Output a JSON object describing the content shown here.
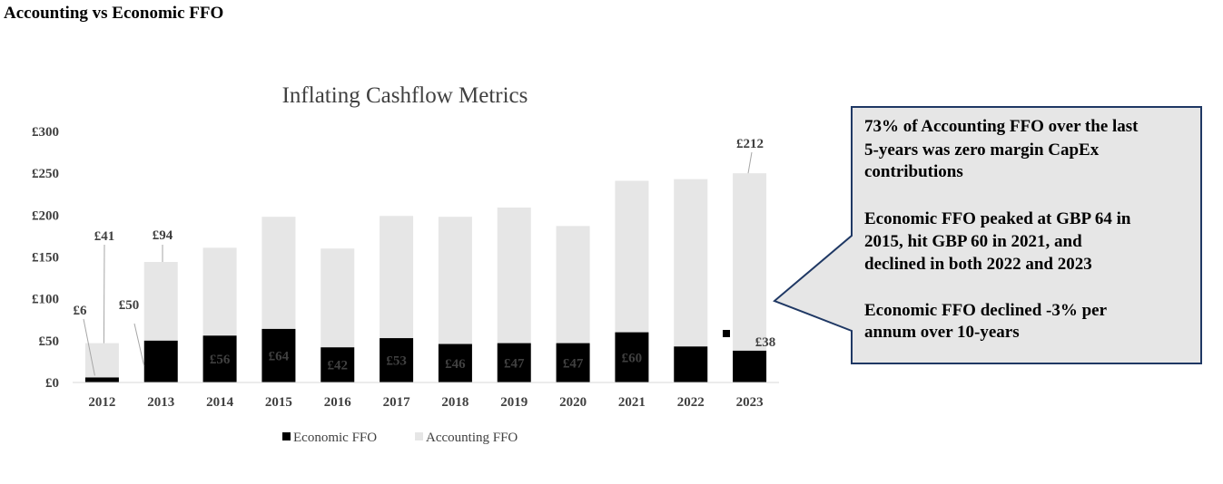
{
  "page": {
    "title": "Accounting vs Economic FFO"
  },
  "chart_data": {
    "type": "bar",
    "stacked": true,
    "title": "Inflating Cashflow Metrics",
    "categories": [
      "2012",
      "2013",
      "2014",
      "2015",
      "2016",
      "2017",
      "2018",
      "2019",
      "2020",
      "2021",
      "2022",
      "2023"
    ],
    "series": [
      {
        "name": "Economic FFO",
        "color": "#000000",
        "values": [
          6,
          50,
          56,
          64,
          42,
          53,
          46,
          47,
          47,
          60,
          43,
          38
        ],
        "labels": [
          "£6",
          "£50",
          "£56",
          "£64",
          "£42",
          "£53",
          "£46",
          "£47",
          "£47",
          "£60",
          "",
          ""
        ]
      },
      {
        "name": "Accounting FFO",
        "color": "#E6E6E6",
        "values": [
          41,
          94,
          105,
          134,
          118,
          146,
          152,
          162,
          140,
          181,
          200,
          212
        ],
        "labels": [
          "£41",
          "£94",
          "",
          "",
          "",
          "",
          "",
          "",
          "",
          "",
          "",
          "£212"
        ]
      }
    ],
    "extra_labels": {
      "economic_2023": "£38"
    },
    "ylim": [
      0,
      300
    ],
    "yticks": [
      0,
      50,
      100,
      150,
      200,
      250,
      300
    ],
    "ytick_labels": [
      "£0",
      "£50",
      "£100",
      "£150",
      "£200",
      "£250",
      "£300"
    ],
    "legend_position": "bottom",
    "grid": false
  },
  "callout": {
    "lines_block1": [
      "73% of Accounting FFO over the last",
      "5-years was zero margin CapEx",
      "contributions"
    ],
    "lines_block2": [
      "Economic FFO peaked at GBP 64 in",
      "2015, hit GBP 60 in 2021, and",
      "declined in both 2022 and 2023"
    ],
    "lines_block3": [
      "Economic FFO declined -3% per",
      "annum over 10-years"
    ],
    "background": "#E6E6E6",
    "border": "#1F3864"
  }
}
